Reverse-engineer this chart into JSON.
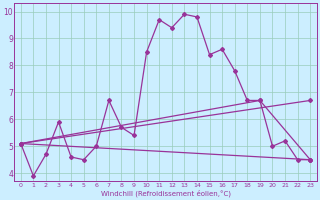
{
  "xlabel": "Windchill (Refroidissement éolien,°C)",
  "background_color": "#cceeff",
  "grid_color": "#99ccbb",
  "line_color": "#993399",
  "xlim": [
    -0.5,
    23.5
  ],
  "ylim": [
    3.7,
    10.3
  ],
  "xticks": [
    0,
    1,
    2,
    3,
    4,
    5,
    6,
    7,
    8,
    9,
    10,
    11,
    12,
    13,
    14,
    15,
    16,
    17,
    18,
    19,
    20,
    21,
    22,
    23
  ],
  "yticks": [
    4,
    5,
    6,
    7,
    8,
    9,
    10
  ],
  "series1_x": [
    0,
    1,
    2,
    3,
    4,
    5,
    6,
    7,
    8,
    9,
    10,
    11,
    12,
    13,
    14,
    15,
    16,
    17,
    18,
    19,
    20,
    21,
    22,
    23
  ],
  "series1_y": [
    5.1,
    3.9,
    4.7,
    5.9,
    4.6,
    4.5,
    5.0,
    6.7,
    5.7,
    5.4,
    8.5,
    9.7,
    9.4,
    9.9,
    9.8,
    8.4,
    8.6,
    7.8,
    6.7,
    6.7,
    5.0,
    5.2,
    4.5,
    4.5
  ],
  "series2_x": [
    0,
    23
  ],
  "series2_y": [
    5.1,
    4.5
  ],
  "series3_x": [
    0,
    19,
    23
  ],
  "series3_y": [
    5.1,
    6.7,
    4.5
  ],
  "series4_x": [
    0,
    23
  ],
  "series4_y": [
    5.1,
    6.7
  ],
  "marker": "D",
  "markersize": 2.0,
  "linewidth": 0.9
}
